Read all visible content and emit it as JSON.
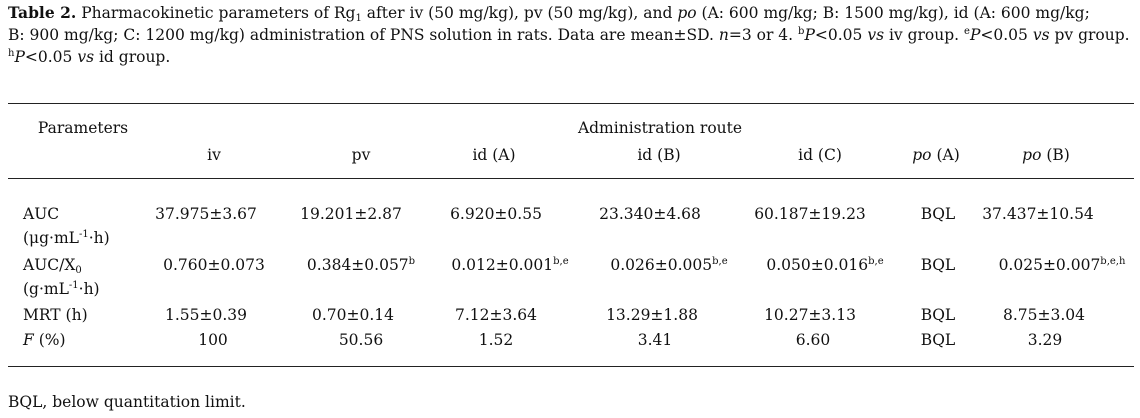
{
  "caption": {
    "label": "Table 2.",
    "line1": "Pharmacokinetic parameters of Rg",
    "line1_sub": "1",
    "line1_b": " after iv (50 mg/kg), pv (50 mg/kg), and ",
    "po": "po",
    "line1_c": " (A: 600 mg/kg; B: 1500 mg/kg), id (A: 600 mg/kg;",
    "line2": "B: 900 mg/kg; C: 1200 mg/kg) administration of PNS solution in rats. Data are mean±SD.  ",
    "n_text": "n",
    "line2_b": "=3 or 4. ",
    "sup_b": "b",
    "p1": "P",
    "line2_c": "<0.05 ",
    "vs1": "vs",
    "line2_d": " iv group. ",
    "sup_e": "e",
    "p2": "P",
    "line2_e": "<0.05 ",
    "vs2": "vs",
    "line2_f": " pv group.",
    "sup_h": "h",
    "p3": "P",
    "line3": "<0.05 ",
    "vs3": "vs",
    "line3_b": " id group."
  },
  "header": {
    "parameters": "Parameters",
    "group": "Administration route",
    "columns": [
      "iv",
      "pv",
      "id (A)",
      "id (B)",
      "id (C)",
      "po",
      "po"
    ],
    "column_suffix": [
      "",
      "",
      "",
      "",
      "",
      " (A)",
      " (B)"
    ]
  },
  "rows": {
    "auc": {
      "label": "AUC",
      "unit": "(μg·mL",
      "unit_sup": "-1",
      "unit_end": "·h)",
      "values": [
        "37.975±3.67",
        "19.201±2.87",
        "6.920±0.55",
        "23.340±4.68",
        "60.187±19.23",
        "BQL",
        "37.437±10.54"
      ]
    },
    "aucx": {
      "label": "AUC/X",
      "label_sub": "0",
      "unit": "(g·mL",
      "unit_sup": "-1",
      "unit_end": "·h)",
      "values": [
        "0.760±0.073",
        "0.384±0.057",
        "0.012±0.001",
        "0.026±0.005",
        "0.050±0.016",
        "BQL",
        "0.025±0.007"
      ],
      "sups": [
        "",
        "b",
        "b,e",
        "b,e",
        "b,e",
        "",
        "b,e,h"
      ]
    },
    "mrt": {
      "label": "MRT (h)",
      "values": [
        "1.55±0.39",
        "0.70±0.14",
        "7.12±3.64",
        "13.29±1.88",
        "10.27±3.13",
        "BQL",
        "8.75±3.04"
      ]
    },
    "f": {
      "label": "F",
      "label_end": " (%)",
      "values": [
        "100",
        "50.56",
        "1.52",
        "3.41",
        "6.60",
        "BQL",
        "3.29"
      ]
    }
  },
  "footnote": "BQL, below quantitation limit."
}
